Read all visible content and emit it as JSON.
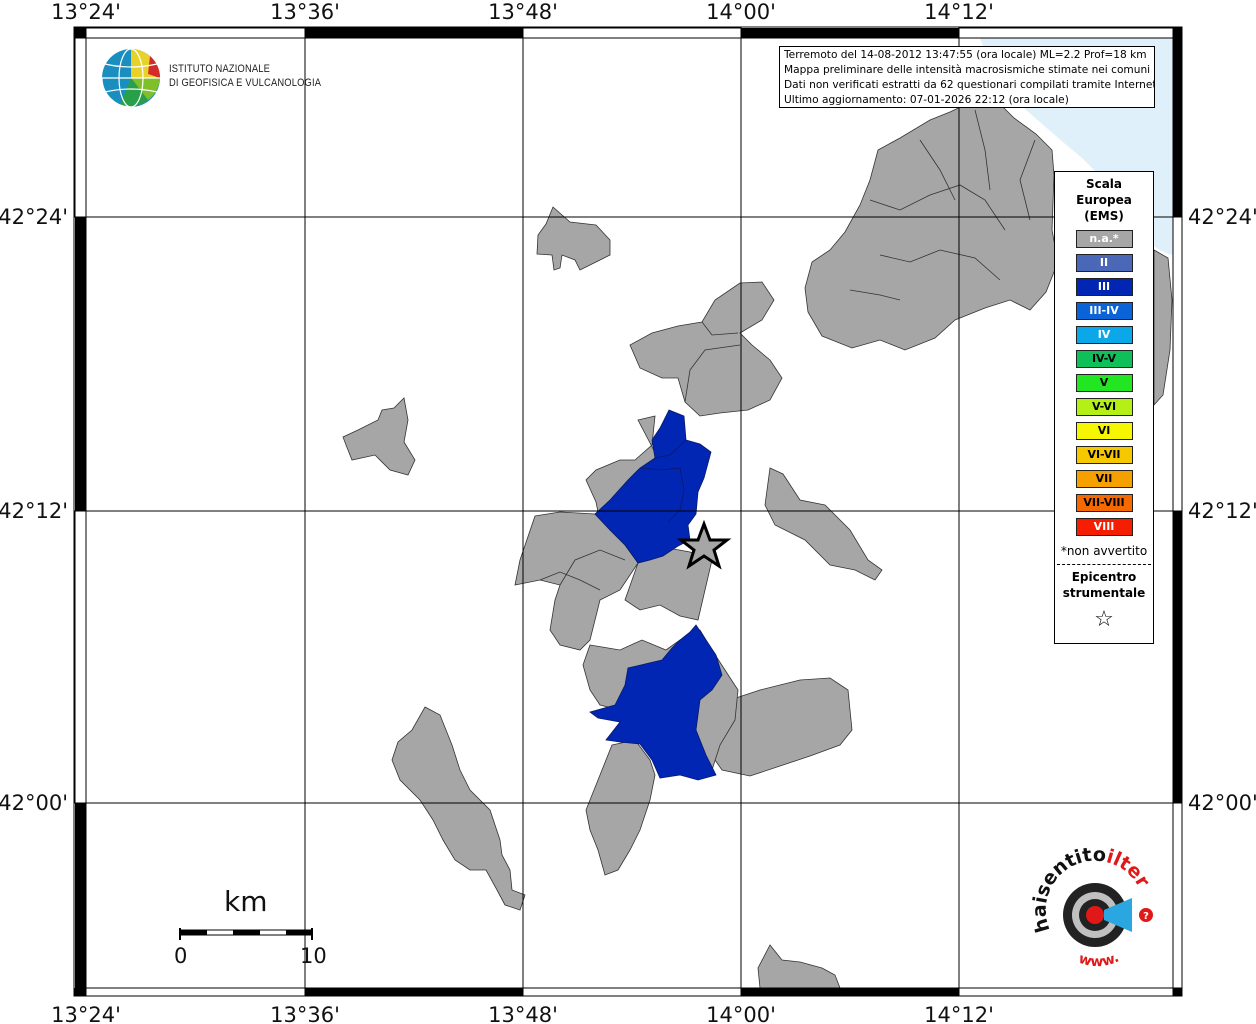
{
  "map": {
    "lon_ticks_top": [
      "13°24'",
      "13°36'",
      "13°48'",
      "14°00'",
      "14°12'"
    ],
    "lon_ticks_bottom": [
      "13°24'",
      "13°36'",
      "13°48'",
      "14°00'",
      "14°12'"
    ],
    "lat_ticks_left": [
      "42°24'",
      "42°12'",
      "42°00'"
    ],
    "lat_ticks_right": [
      "42°24'",
      "42°12'",
      "42°00'"
    ],
    "sea_color": "#e0f0fa",
    "na_color": "#a6a6a6",
    "intensity_III_color": "#0026b3"
  },
  "logo": {
    "line1": "ISTITUTO NAZIONALE",
    "line2": "DI GEOFISICA E VULCANOLOGIA"
  },
  "info": {
    "line1": "Terremoto del 14-08-2012 13:47:55 (ora locale) ML=2.2 Prof=18 km",
    "line2": "Mappa preliminare delle intensità macrosismiche stimate nei comuni",
    "line3": "Dati non verificati estratti da 62 questionari compilati tramite Internet.",
    "line4": "Ultimo aggiornamento: 07-01-2026 22:12 (ora locale)"
  },
  "legend": {
    "title1": "Scala",
    "title2": "Europea",
    "title3": "(EMS)",
    "items": [
      {
        "label": "n.a.*",
        "color": "#a6a6a6",
        "dark": false
      },
      {
        "label": "II",
        "color": "#4a67b8",
        "dark": false
      },
      {
        "label": "III",
        "color": "#0026b3",
        "dark": false
      },
      {
        "label": "III-IV",
        "color": "#0a64d8",
        "dark": false
      },
      {
        "label": "IV",
        "color": "#0aa8e8",
        "dark": false
      },
      {
        "label": "IV-V",
        "color": "#0fbf5a",
        "dark": true
      },
      {
        "label": "V",
        "color": "#22e622",
        "dark": true
      },
      {
        "label": "V-VI",
        "color": "#b4f016",
        "dark": true
      },
      {
        "label": "VI",
        "color": "#f6f600",
        "dark": true
      },
      {
        "label": "VI-VII",
        "color": "#f6c800",
        "dark": true
      },
      {
        "label": "VII",
        "color": "#f6a000",
        "dark": true
      },
      {
        "label": "VII-VIII",
        "color": "#f66800",
        "dark": true
      },
      {
        "label": "VIII",
        "color": "#f61e00",
        "dark": false
      }
    ],
    "note": "*non avvertito",
    "epi1": "Epicentro",
    "epi2": "strumentale",
    "star": "☆"
  },
  "scalebar": {
    "unit": "km",
    "start": "0",
    "end": "10"
  },
  "brand": {
    "text_a": "haisentito",
    "text_b": "ilterremoto.it",
    "text_c": "www."
  }
}
